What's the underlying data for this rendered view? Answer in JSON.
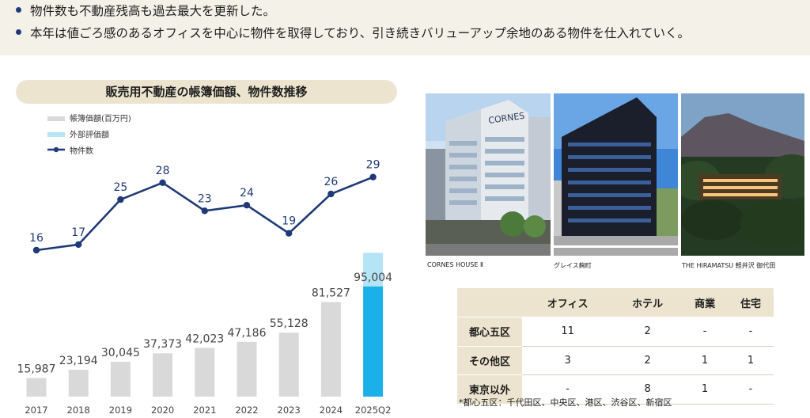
{
  "bullets": [
    "物件数も不動産残高も過去最大を更新した。",
    "本年は値ごろ感のあるオフィスを中心に物件を取得しており、引き続きバリューアップ余地のある物件を仕入れていく。"
  ],
  "chart_data": {
    "type": "bar",
    "title": "販売用不動産の帳簿価額、物件数推移",
    "categories": [
      "2017",
      "2018",
      "2019",
      "2020",
      "2021",
      "2022",
      "2023",
      "2024",
      "2025Q2"
    ],
    "series": [
      {
        "name": "帳簿価額(百万円)",
        "type": "bar",
        "color": "#d9d9d9",
        "values": [
          15987,
          23194,
          30045,
          37373,
          42023,
          47186,
          55128,
          81527,
          95004
        ],
        "labels": [
          "15,987",
          "23,194",
          "30,045",
          "37,373",
          "42,023",
          "47,186",
          "55,128",
          "81,527",
          "95,004"
        ]
      },
      {
        "name": "外部評価額",
        "type": "bar",
        "color": "#b4e4f6",
        "stacked_on": "帳簿価額(百万円)",
        "values": [
          null,
          null,
          null,
          null,
          null,
          null,
          null,
          null,
          29000
        ]
      },
      {
        "name": "物件数",
        "type": "line",
        "color": "#1f3a78",
        "values": [
          16,
          17,
          25,
          28,
          23,
          24,
          19,
          26,
          29
        ],
        "labels": [
          "16",
          "17",
          "25",
          "28",
          "23",
          "24",
          "19",
          "26",
          "29"
        ]
      }
    ],
    "highlight_color": "#1cb0ea",
    "legend_position": "top-left"
  },
  "photos": [
    {
      "caption": "CORNES HOUSE Ⅱ",
      "sign": "CORNES"
    },
    {
      "caption": "グレイス麹町"
    },
    {
      "caption": "THE HIRAMATSU 軽井沢 御代田"
    }
  ],
  "table": {
    "columns": [
      "",
      "オフィス",
      "ホテル",
      "商業",
      "住宅"
    ],
    "rows": [
      {
        "label": "都心五区",
        "values": [
          "11",
          "2",
          "-",
          "-"
        ]
      },
      {
        "label": "その他区",
        "values": [
          "3",
          "2",
          "1",
          "1"
        ]
      },
      {
        "label": "東京以外",
        "values": [
          "-",
          "8",
          "1",
          "-"
        ]
      }
    ],
    "note": "*都心五区：千代田区、中央区、港区、渋谷区、新宿区"
  }
}
